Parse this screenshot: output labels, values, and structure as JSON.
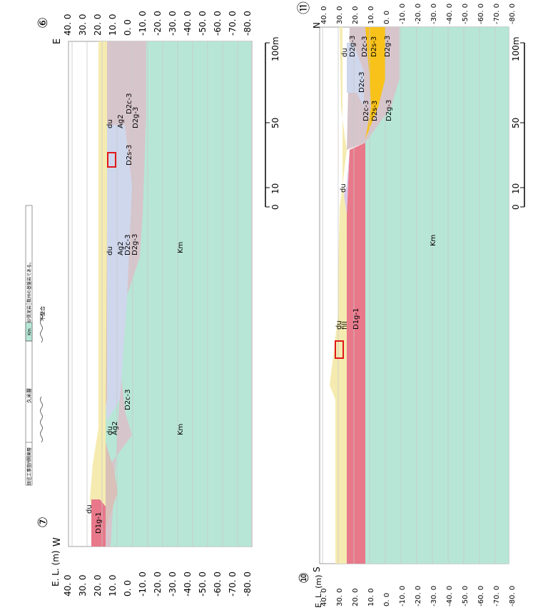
{
  "colors": {
    "Km": "#b7e6d6",
    "du": "#f5ebb0",
    "Ag2": "#d9c0b8",
    "D2": "#d7c5cc",
    "D2c3_light": "#cfd7ec",
    "D2s3": "#f8c21a",
    "D1g1": "#e8788a",
    "fill": "#dac8ea",
    "grid": "#c8c8c8",
    "marker": "#e01818"
  },
  "legend": {
    "cell1": "既往工事箇所",
    "cell2": "関東層",
    "kume": "久米層",
    "km": "Km",
    "sand_mud": "砂質泥岩",
    "note": "数州の基盤岩である。",
    "unconformity": "不整合"
  },
  "section_top": {
    "left_marker": "⑦",
    "right_marker": "⑥",
    "left_dir": "W",
    "right_dir": "E",
    "axis_title": "E. L. (m)",
    "ticks": [
      "40. 0",
      "30. 0",
      "20. 0",
      "10. 0",
      "0. 0",
      "-10. 0",
      "-20. 0",
      "-30. 0",
      "-40. 0",
      "-50. 0",
      "-60. 0",
      "-70. 0",
      "-80. 0"
    ],
    "labels": {
      "D1g1": "D1g-1",
      "du1": "du",
      "du2": "du",
      "du3": "du",
      "du4": "du",
      "Ag2_1": "Ag2",
      "Ag2_2": "Ag2",
      "Ag2_3": "Ag2",
      "D2c3_1": "D2c-3",
      "D2c3_2": "D2c-3",
      "D2g3_1": "D2g-3",
      "D2g3_2": "D2g-3",
      "D2s3": "D2s-3",
      "D2c3_3": "D2c-3",
      "Km1": "Km",
      "Km2": "Km"
    },
    "scale": {
      "s0": "0",
      "s10": "10",
      "s50": "50",
      "s100": "100m"
    }
  },
  "section_bottom": {
    "left_marker": "⑩",
    "right_marker": "⑪",
    "left_dir": "S",
    "right_dir": "N",
    "axis_title": "E. L. (m)",
    "ticks": [
      "40. 0",
      "30. 0",
      "20. 0",
      "10. 0",
      "0. 0",
      "-10. 0",
      "-20. 0",
      "-30. 0",
      "-40. 0",
      "-50. 0",
      "-60. 0",
      "-70. 0",
      "-80. 0"
    ],
    "labels": {
      "du1": "du",
      "fill": "fill",
      "D1g1": "D1g-1",
      "du2": "du",
      "Km": "Km",
      "D2c3_1": "D2c-3",
      "D2c3_2": "D2c-3",
      "D2s3_1": "D2s-3",
      "D2g3_1": "D2g-3",
      "du3": "du",
      "D2g3_2": "D2g-3",
      "D2c3_3": "D2c-3",
      "D2s3_2": "D2s-3",
      "D2g3_3": "D2g-3"
    },
    "scale": {
      "s0": "0",
      "s10": "10",
      "s50": "50",
      "s100": "100m"
    }
  }
}
